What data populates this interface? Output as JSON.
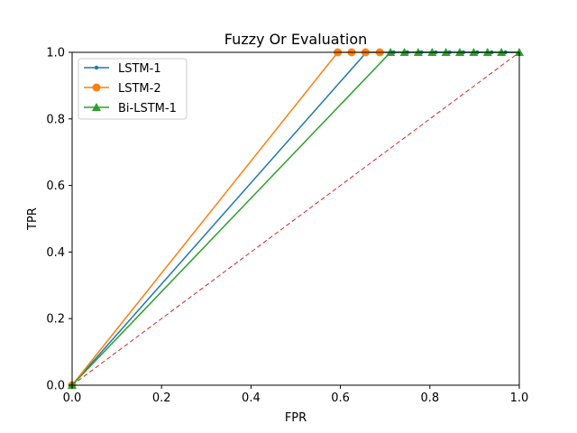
{
  "chart_data": {
    "type": "line",
    "title": "Fuzzy Or Evaluation",
    "xlabel": "FPR",
    "ylabel": "TPR",
    "xlim": [
      0.0,
      1.0
    ],
    "ylim": [
      0.0,
      1.0
    ],
    "xticks": [
      "0.0",
      "0.2",
      "0.4",
      "0.6",
      "0.8",
      "1.0"
    ],
    "yticks": [
      "0.0",
      "0.2",
      "0.4",
      "0.6",
      "0.8",
      "1.0"
    ],
    "grid": false,
    "legend_position": "top-left",
    "series": [
      {
        "name": "LSTM-1",
        "color": "#1f77b4",
        "marker": "point",
        "x": [
          0.0,
          0.658,
          0.688,
          0.719,
          0.75,
          0.781,
          0.813,
          0.844,
          0.875,
          0.906,
          0.938,
          0.969,
          1.0
        ],
        "y": [
          0.0,
          1.0,
          1.0,
          1.0,
          1.0,
          1.0,
          1.0,
          1.0,
          1.0,
          1.0,
          1.0,
          1.0,
          1.0
        ]
      },
      {
        "name": "LSTM-2",
        "color": "#ff7f0e",
        "marker": "circle",
        "x": [
          0.0,
          0.594,
          0.625,
          0.656,
          0.688
        ],
        "y": [
          0.0,
          1.0,
          1.0,
          1.0,
          1.0
        ]
      },
      {
        "name": "Bi-LSTM-1",
        "color": "#2ca02c",
        "marker": "triangle",
        "x": [
          0.0,
          0.712,
          0.743,
          0.774,
          0.805,
          0.836,
          0.867,
          0.898,
          0.929,
          0.96,
          1.0
        ],
        "y": [
          0.0,
          1.0,
          1.0,
          1.0,
          1.0,
          1.0,
          1.0,
          1.0,
          1.0,
          1.0,
          1.0
        ]
      }
    ],
    "reference_line": {
      "color": "#d62728",
      "style": "dashed",
      "x": [
        0.0,
        1.0
      ],
      "y": [
        0.0,
        1.0
      ]
    }
  }
}
